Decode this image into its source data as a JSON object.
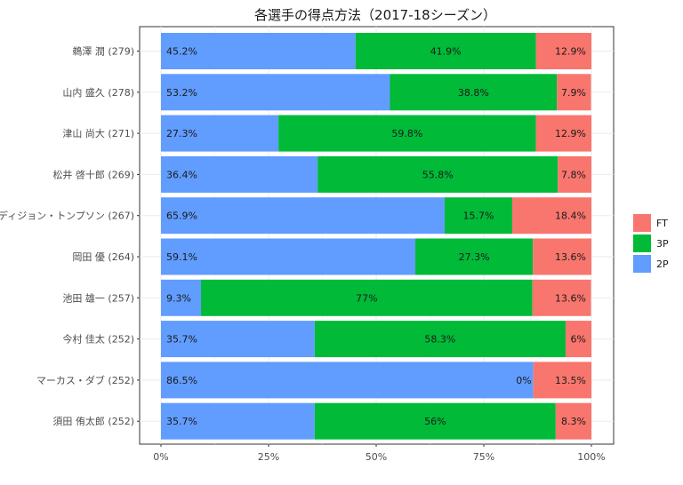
{
  "chart_data": {
    "type": "bar",
    "orientation": "horizontal",
    "stacked": "percent",
    "title": "各選手の得点方法（2017-18シーズン）",
    "xlabel": "",
    "ylabel": "",
    "xlim": [
      0,
      100
    ],
    "x_tick_labels": [
      "0%",
      "25%",
      "50%",
      "75%",
      "100%"
    ],
    "x_tick_values": [
      0,
      25,
      50,
      75,
      100
    ],
    "grid": true,
    "legend_position": "right",
    "legend": [
      "FT",
      "3P",
      "2P"
    ],
    "categories": [
      "鵜澤 潤 (279)",
      "山内 盛久 (278)",
      "津山 尚大 (271)",
      "松井 啓十郎 (269)",
      "ディジョン・トンプソン (267)",
      "岡田 優 (264)",
      "池田 雄一 (257)",
      "今村 佳太 (252)",
      "マーカス・ダブ (252)",
      "須田 侑太郎 (252)"
    ],
    "series": [
      {
        "name": "2P",
        "color": "#619CFF",
        "values": [
          45.2,
          53.2,
          27.3,
          36.4,
          65.9,
          59.1,
          9.3,
          35.7,
          86.5,
          35.7
        ],
        "labels": [
          "45.2%",
          "53.2%",
          "27.3%",
          "36.4%",
          "65.9%",
          "59.1%",
          "9.3%",
          "35.7%",
          "86.5%",
          "35.7%"
        ]
      },
      {
        "name": "3P",
        "color": "#00BA38",
        "values": [
          41.9,
          38.8,
          59.8,
          55.8,
          15.7,
          27.3,
          77,
          58.3,
          0,
          56
        ],
        "labels": [
          "41.9%",
          "38.8%",
          "59.8%",
          "55.8%",
          "15.7%",
          "27.3%",
          "77%",
          "58.3%",
          "0%",
          "56%"
        ]
      },
      {
        "name": "FT",
        "color": "#F8766D",
        "values": [
          12.9,
          7.9,
          12.9,
          7.8,
          18.4,
          13.6,
          13.6,
          6,
          13.5,
          8.3
        ],
        "labels": [
          "12.9%",
          "7.9%",
          "12.9%",
          "7.8%",
          "18.4%",
          "13.6%",
          "13.6%",
          "6%",
          "13.5%",
          "8.3%"
        ]
      }
    ]
  }
}
